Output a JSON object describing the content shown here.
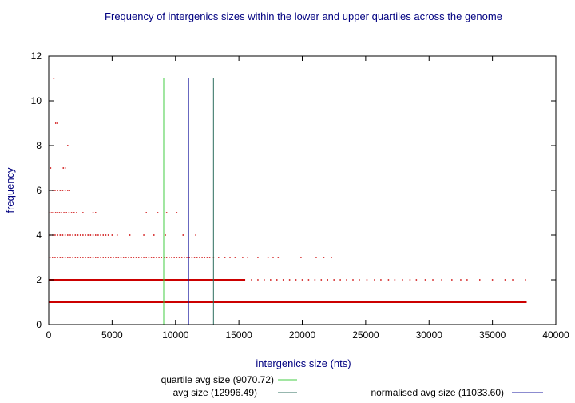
{
  "chart_data": {
    "type": "scatter",
    "title": "Frequency of intergenics sizes within the lower and upper quartiles across the genome",
    "xlabel": "intergenics size (nts)",
    "ylabel": "frequency",
    "xlim": [
      0,
      40000
    ],
    "ylim": [
      0,
      12
    ],
    "xticks": [
      "0",
      "5000",
      "10000",
      "15000",
      "20000",
      "25000",
      "30000",
      "35000",
      "40000"
    ],
    "yticks": [
      "0",
      "2",
      "4",
      "6",
      "8",
      "10",
      "12"
    ],
    "grid": false,
    "legend_position": "bottom",
    "point_color": "#cc0000",
    "bands": [
      {
        "y": 1,
        "xmin": 0,
        "xmax": 37700
      },
      {
        "y": 2,
        "xmin": 0,
        "xmax": 15500
      }
    ],
    "series": [
      {
        "points": [
          [
            400,
            11
          ],
          [
            550,
            9
          ],
          [
            700,
            9
          ],
          [
            1150,
            7
          ],
          [
            1300,
            7
          ],
          [
            1500,
            8
          ],
          [
            150,
            7
          ],
          [
            300,
            6
          ],
          [
            500,
            6
          ],
          [
            700,
            6
          ],
          [
            900,
            6
          ],
          [
            1100,
            6
          ],
          [
            1300,
            6
          ],
          [
            1500,
            6
          ],
          [
            1650,
            6
          ],
          [
            100,
            5
          ],
          [
            250,
            5
          ],
          [
            400,
            5
          ],
          [
            550,
            5
          ],
          [
            700,
            5
          ],
          [
            850,
            5
          ],
          [
            1000,
            5
          ],
          [
            1200,
            5
          ],
          [
            1400,
            5
          ],
          [
            1600,
            5
          ],
          [
            1800,
            5
          ],
          [
            2000,
            5
          ],
          [
            2200,
            5
          ],
          [
            2700,
            5
          ],
          [
            3500,
            5
          ],
          [
            3700,
            5
          ],
          [
            7700,
            5
          ],
          [
            8600,
            5
          ],
          [
            9300,
            5
          ],
          [
            10100,
            5
          ],
          [
            100,
            4
          ],
          [
            300,
            4
          ],
          [
            500,
            4
          ],
          [
            700,
            4
          ],
          [
            900,
            4
          ],
          [
            1100,
            4
          ],
          [
            1300,
            4
          ],
          [
            1500,
            4
          ],
          [
            1700,
            4
          ],
          [
            1900,
            4
          ],
          [
            2100,
            4
          ],
          [
            2300,
            4
          ],
          [
            2500,
            4
          ],
          [
            2700,
            4
          ],
          [
            2900,
            4
          ],
          [
            3100,
            4
          ],
          [
            3300,
            4
          ],
          [
            3500,
            4
          ],
          [
            3700,
            4
          ],
          [
            3900,
            4
          ],
          [
            4100,
            4
          ],
          [
            4300,
            4
          ],
          [
            4500,
            4
          ],
          [
            4700,
            4
          ],
          [
            5000,
            4
          ],
          [
            5400,
            4
          ],
          [
            6400,
            4
          ],
          [
            7500,
            4
          ],
          [
            8300,
            4
          ],
          [
            9200,
            4
          ],
          [
            10600,
            4
          ],
          [
            11600,
            4
          ],
          [
            100,
            3
          ],
          [
            300,
            3
          ],
          [
            500,
            3
          ],
          [
            700,
            3
          ],
          [
            900,
            3
          ],
          [
            1100,
            3
          ],
          [
            1300,
            3
          ],
          [
            1500,
            3
          ],
          [
            1700,
            3
          ],
          [
            1900,
            3
          ],
          [
            2100,
            3
          ],
          [
            2300,
            3
          ],
          [
            2500,
            3
          ],
          [
            2700,
            3
          ],
          [
            2900,
            3
          ],
          [
            3100,
            3
          ],
          [
            3300,
            3
          ],
          [
            3500,
            3
          ],
          [
            3700,
            3
          ],
          [
            3900,
            3
          ],
          [
            4100,
            3
          ],
          [
            4300,
            3
          ],
          [
            4500,
            3
          ],
          [
            4700,
            3
          ],
          [
            4900,
            3
          ],
          [
            5100,
            3
          ],
          [
            5300,
            3
          ],
          [
            5500,
            3
          ],
          [
            5700,
            3
          ],
          [
            5900,
            3
          ],
          [
            6100,
            3
          ],
          [
            6300,
            3
          ],
          [
            6500,
            3
          ],
          [
            6700,
            3
          ],
          [
            6900,
            3
          ],
          [
            7100,
            3
          ],
          [
            7300,
            3
          ],
          [
            7500,
            3
          ],
          [
            7700,
            3
          ],
          [
            7900,
            3
          ],
          [
            8100,
            3
          ],
          [
            8300,
            3
          ],
          [
            8500,
            3
          ],
          [
            8700,
            3
          ],
          [
            8900,
            3
          ],
          [
            9100,
            3
          ],
          [
            9300,
            3
          ],
          [
            9500,
            3
          ],
          [
            9700,
            3
          ],
          [
            9900,
            3
          ],
          [
            10100,
            3
          ],
          [
            10300,
            3
          ],
          [
            10500,
            3
          ],
          [
            10700,
            3
          ],
          [
            10900,
            3
          ],
          [
            11100,
            3
          ],
          [
            11300,
            3
          ],
          [
            11500,
            3
          ],
          [
            11700,
            3
          ],
          [
            11900,
            3
          ],
          [
            12100,
            3
          ],
          [
            12300,
            3
          ],
          [
            12500,
            3
          ],
          [
            12700,
            3
          ],
          [
            13000,
            3
          ],
          [
            13400,
            3
          ],
          [
            13900,
            3
          ],
          [
            14300,
            3
          ],
          [
            14700,
            3
          ],
          [
            15300,
            3
          ],
          [
            15700,
            3
          ],
          [
            16500,
            3
          ],
          [
            17300,
            3
          ],
          [
            17700,
            3
          ],
          [
            18100,
            3
          ],
          [
            19900,
            3
          ],
          [
            21100,
            3
          ],
          [
            21700,
            3
          ],
          [
            22300,
            3
          ],
          [
            16000,
            2
          ],
          [
            16500,
            2
          ],
          [
            17000,
            2
          ],
          [
            17500,
            2
          ],
          [
            18000,
            2
          ],
          [
            18500,
            2
          ],
          [
            19000,
            2
          ],
          [
            19500,
            2
          ],
          [
            20000,
            2
          ],
          [
            20500,
            2
          ],
          [
            21000,
            2
          ],
          [
            21500,
            2
          ],
          [
            22000,
            2
          ],
          [
            22500,
            2
          ],
          [
            23000,
            2
          ],
          [
            23500,
            2
          ],
          [
            24000,
            2
          ],
          [
            24500,
            2
          ],
          [
            25100,
            2
          ],
          [
            25700,
            2
          ],
          [
            26200,
            2
          ],
          [
            26800,
            2
          ],
          [
            27300,
            2
          ],
          [
            27900,
            2
          ],
          [
            28500,
            2
          ],
          [
            29000,
            2
          ],
          [
            29700,
            2
          ],
          [
            30300,
            2
          ],
          [
            31000,
            2
          ],
          [
            31800,
            2
          ],
          [
            32500,
            2
          ],
          [
            33000,
            2
          ],
          [
            34000,
            2
          ],
          [
            35000,
            2
          ],
          [
            36000,
            2
          ],
          [
            36600,
            2
          ],
          [
            37600,
            2
          ]
        ]
      }
    ],
    "reference_lines": [
      {
        "name": "quartile avg size (9070.72)",
        "x": 9070.72,
        "ymax": 11,
        "color": "#44cc44"
      },
      {
        "name": "avg size (12996.49)",
        "x": 12996.49,
        "ymax": 11,
        "color": "#2f6f5f"
      },
      {
        "name": "normalised avg size (11033.60)",
        "x": 11033.6,
        "ymax": 11,
        "color": "#1a1aa0"
      }
    ]
  }
}
